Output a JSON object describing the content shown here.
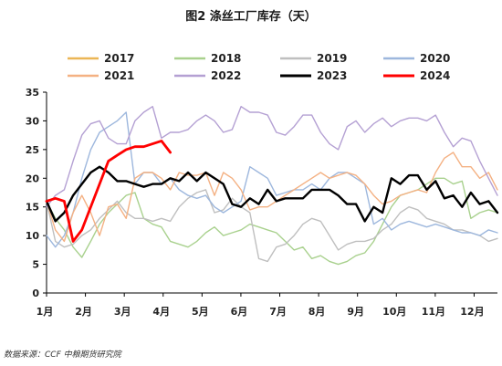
{
  "chart_data": {
    "type": "line",
    "title": "图2 涤丝工厂库存（天）",
    "source": "数据来源：CCF 中粮期货研究院",
    "xlabel": "",
    "ylabel": "",
    "ylim": [
      0,
      35
    ],
    "y_ticks": [
      0,
      5,
      10,
      15,
      20,
      25,
      30,
      35
    ],
    "x_tick_labels": [
      "1月",
      "2月",
      "3月",
      "4月",
      "5月",
      "6月",
      "7月",
      "8月",
      "9月",
      "10月",
      "11月",
      "12月"
    ],
    "x_unit": "week",
    "grid": false,
    "legend_position": "top",
    "series": [
      {
        "name": "2017",
        "color": "#ebb655",
        "width": 1.4,
        "x": [],
        "y": []
      },
      {
        "name": "2018",
        "color": "#a9d18e",
        "width": 1.4,
        "x": [
          0,
          1,
          2,
          3,
          4,
          5,
          6,
          7,
          8,
          9,
          10,
          11,
          12,
          13,
          14,
          15,
          16,
          17,
          18,
          19,
          20,
          21,
          22,
          23,
          24,
          25,
          26,
          27,
          28,
          29,
          30,
          31,
          32,
          33,
          34,
          35,
          36,
          37,
          38,
          39,
          40,
          41,
          42,
          43,
          44,
          45,
          46,
          47,
          48,
          49,
          50,
          51
        ],
        "y": [
          16,
          13,
          11,
          8,
          6.2,
          9,
          12,
          14,
          15.5,
          17,
          17.5,
          13,
          12,
          11.5,
          9,
          8.5,
          8,
          9,
          10.5,
          11.5,
          10,
          10.5,
          11,
          12,
          11.5,
          11,
          10.5,
          9,
          7.5,
          8,
          6,
          6.5,
          5.5,
          5,
          5.5,
          6.5,
          7,
          9,
          12,
          15,
          17,
          17.5,
          18,
          19,
          20,
          20,
          19,
          19.5,
          13,
          14,
          14.5,
          14
        ]
      },
      {
        "name": "2019",
        "color": "#bfbfbf",
        "width": 1.4,
        "x": [
          0,
          1,
          2,
          3,
          4,
          5,
          6,
          7,
          8,
          9,
          10,
          11,
          12,
          13,
          14,
          15,
          16,
          17,
          18,
          19,
          20,
          21,
          22,
          23,
          24,
          25,
          26,
          27,
          28,
          29,
          30,
          31,
          32,
          33,
          34,
          35,
          36,
          37,
          38,
          39,
          40,
          41,
          42,
          43,
          44,
          45,
          46,
          47,
          48,
          49,
          50,
          51
        ],
        "y": [
          16,
          9,
          8,
          8.5,
          10,
          11,
          13,
          14.5,
          16,
          14,
          13,
          13,
          12.5,
          13,
          12.5,
          15,
          16.5,
          17.5,
          18,
          14,
          14.5,
          16.5,
          15,
          14,
          6,
          5.5,
          8,
          8.5,
          10,
          12,
          13,
          12.5,
          10,
          7.5,
          8.5,
          9,
          9,
          9.5,
          11,
          12,
          14,
          15,
          14.5,
          13,
          12.5,
          12,
          11,
          11,
          10.5,
          10,
          9,
          9.5
        ]
      },
      {
        "name": "2020",
        "color": "#9db7dd",
        "width": 1.4,
        "x": [
          0,
          1,
          2,
          3,
          4,
          5,
          6,
          7,
          8,
          9,
          10,
          11,
          12,
          13,
          14,
          15,
          16,
          17,
          18,
          19,
          20,
          21,
          22,
          23,
          24,
          25,
          26,
          27,
          28,
          29,
          30,
          31,
          32,
          33,
          34,
          35,
          36,
          37,
          38,
          39,
          40,
          41,
          42,
          43,
          44,
          45,
          46,
          47,
          48,
          49,
          50,
          51
        ],
        "y": [
          10,
          8,
          10,
          14,
          20,
          25,
          28,
          29,
          30,
          31.5,
          19,
          21,
          21,
          19,
          20,
          18,
          17,
          16.5,
          17,
          15,
          14,
          15,
          16,
          22,
          21,
          20,
          17,
          17.5,
          18,
          18,
          19,
          18,
          20,
          21,
          21,
          20,
          19,
          12,
          13,
          11,
          12,
          12.5,
          12,
          11.5,
          12,
          11.5,
          11,
          10.5,
          10.5,
          10,
          11,
          10.5
        ]
      },
      {
        "name": "2021",
        "color": "#f4b183",
        "width": 1.4,
        "x": [
          0,
          1,
          2,
          3,
          4,
          5,
          6,
          7,
          8,
          9,
          10,
          11,
          12,
          13,
          14,
          15,
          16,
          17,
          18,
          19,
          20,
          21,
          22,
          23,
          24,
          25,
          26,
          27,
          28,
          29,
          30,
          31,
          32,
          33,
          34,
          35,
          36,
          37,
          38,
          39,
          40,
          41,
          42,
          43,
          44,
          45,
          46,
          47,
          48,
          49,
          50,
          51
        ],
        "y": [
          16,
          11,
          9,
          14,
          17,
          14,
          10,
          15,
          15.5,
          13,
          20,
          21,
          21,
          20,
          18,
          21,
          20.5,
          20.5,
          21,
          17,
          21,
          20,
          18,
          14.5,
          15,
          15,
          16,
          17,
          18,
          19,
          20,
          21,
          20,
          20.5,
          21,
          20.5,
          19,
          17,
          15.5,
          16,
          17,
          17.5,
          18,
          17.5,
          21,
          23.5,
          24.5,
          22,
          22,
          20,
          21,
          18
        ]
      },
      {
        "name": "2022",
        "color": "#b4a0d3",
        "width": 1.4,
        "x": [
          0,
          1,
          2,
          3,
          4,
          5,
          6,
          7,
          8,
          9,
          10,
          11,
          12,
          13,
          14,
          15,
          16,
          17,
          18,
          19,
          20,
          21,
          22,
          23,
          24,
          25,
          26,
          27,
          28,
          29,
          30,
          31,
          32,
          33,
          34,
          35,
          36,
          37,
          38,
          39,
          40,
          41,
          42,
          43,
          44,
          45,
          46,
          47,
          48,
          49,
          50,
          51
        ],
        "y": [
          15,
          17,
          18,
          23,
          27.5,
          29.5,
          30,
          27,
          26,
          26,
          30,
          31.5,
          32.5,
          27,
          28,
          28,
          28.5,
          30,
          31,
          30,
          28,
          28.5,
          32.5,
          31.5,
          31.5,
          31,
          28,
          27.5,
          29,
          31,
          31,
          28,
          26,
          25,
          29,
          30,
          28,
          29.5,
          30.5,
          29,
          30,
          30.5,
          30.5,
          30,
          31,
          28,
          25.5,
          27,
          26.5,
          23,
          20,
          17
        ]
      },
      {
        "name": "2023",
        "color": "#000000",
        "width": 2.4,
        "x": [
          0,
          1,
          2,
          3,
          4,
          5,
          6,
          7,
          8,
          9,
          10,
          11,
          12,
          13,
          14,
          15,
          16,
          17,
          18,
          19,
          20,
          21,
          22,
          23,
          24,
          25,
          26,
          27,
          28,
          29,
          30,
          31,
          32,
          33,
          34,
          35,
          36,
          37,
          38,
          39,
          40,
          41,
          42,
          43,
          44,
          45,
          46,
          47,
          48,
          49,
          50,
          51
        ],
        "y": [
          16,
          12.5,
          14,
          17,
          19,
          21,
          22,
          21,
          19.5,
          19.5,
          19,
          18.5,
          19,
          19,
          20,
          19.5,
          21,
          19.5,
          21,
          20,
          19,
          15.5,
          15,
          16.5,
          15.5,
          18,
          16,
          16.5,
          16.5,
          16.5,
          18,
          18,
          18,
          17,
          15.5,
          15.5,
          12.5,
          15,
          14,
          20,
          19,
          20.5,
          20.5,
          18,
          19.5,
          16.5,
          17,
          15,
          17.5,
          15.5,
          16,
          14
        ]
      },
      {
        "name": "2024",
        "color": "#ff0000",
        "width": 2.8,
        "x": [
          0,
          1,
          2,
          3,
          4,
          5,
          6,
          7,
          8,
          9,
          10,
          11,
          12,
          13,
          14
        ],
        "y": [
          16,
          16.5,
          16,
          9,
          11,
          15,
          19,
          23,
          24,
          25,
          25.5,
          25.5,
          26,
          26.5,
          24.5
        ]
      }
    ]
  }
}
